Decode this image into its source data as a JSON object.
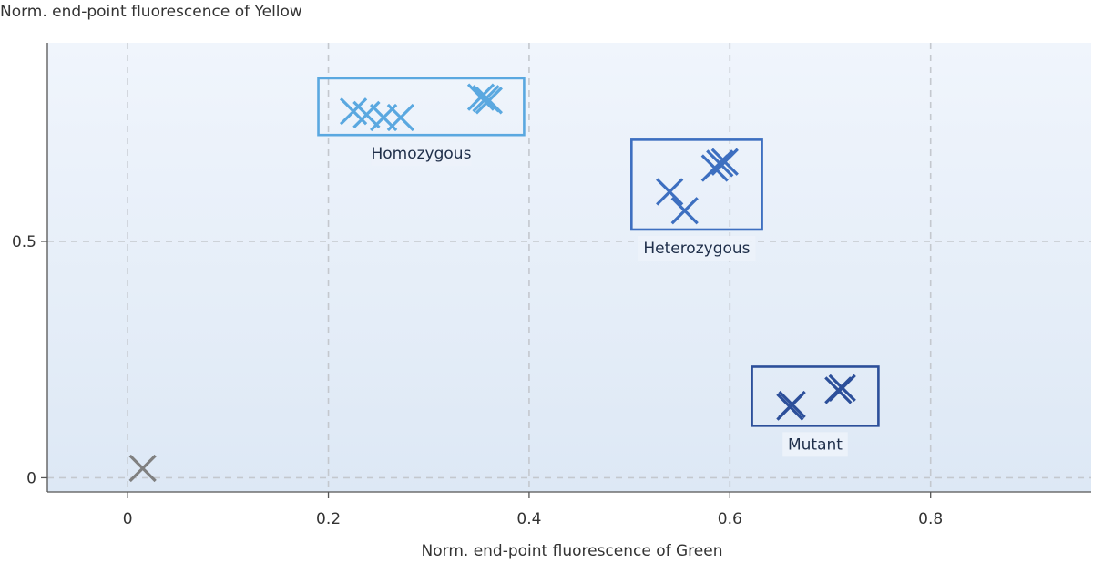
{
  "chart_data": {
    "type": "scatter",
    "xlabel": "Norm. end-point fluorescence of Green",
    "ylabel": "Norm. end-point fluorescence of Yellow",
    "xlim": [
      -0.08,
      0.96
    ],
    "ylim": [
      -0.03,
      0.92
    ],
    "x_ticks": [
      0,
      0.2,
      0.4,
      0.6,
      0.8
    ],
    "x_tick_labels": [
      "0",
      "0.2",
      "0.4",
      "0.6",
      "0.8"
    ],
    "y_ticks": [
      0,
      0.5
    ],
    "y_tick_labels": [
      "0",
      "0.5"
    ],
    "grid": true,
    "grid_style": "dashed",
    "background_gradient": [
      "#f0f5fc",
      "#dde8f5"
    ],
    "series": [
      {
        "label": "Homozygous",
        "color": "#5aa8e0",
        "box_color": "#5aa8e0",
        "box_x": [
          0.19,
          0.395
        ],
        "box_y": [
          0.725,
          0.845
        ],
        "points": [
          {
            "x": 0.225,
            "y": 0.775
          },
          {
            "x": 0.238,
            "y": 0.768
          },
          {
            "x": 0.255,
            "y": 0.762
          },
          {
            "x": 0.272,
            "y": 0.762
          },
          {
            "x": 0.352,
            "y": 0.805
          },
          {
            "x": 0.357,
            "y": 0.802
          },
          {
            "x": 0.36,
            "y": 0.798
          }
        ]
      },
      {
        "label": "Heterozygous",
        "color": "#3d6fc0",
        "box_color": "#3d6fc0",
        "box_x": [
          0.502,
          0.632
        ],
        "box_y": [
          0.525,
          0.715
        ],
        "points": [
          {
            "x": 0.54,
            "y": 0.605
          },
          {
            "x": 0.555,
            "y": 0.565
          },
          {
            "x": 0.585,
            "y": 0.655
          },
          {
            "x": 0.59,
            "y": 0.665
          },
          {
            "x": 0.595,
            "y": 0.668
          }
        ]
      },
      {
        "label": "Mutant",
        "color": "#2c4f9a",
        "box_color": "#2c4f9a",
        "box_x": [
          0.622,
          0.748
        ],
        "box_y": [
          0.11,
          0.235
        ],
        "points": [
          {
            "x": 0.66,
            "y": 0.15
          },
          {
            "x": 0.662,
            "y": 0.155
          },
          {
            "x": 0.708,
            "y": 0.185
          },
          {
            "x": 0.712,
            "y": 0.19
          }
        ]
      },
      {
        "label": "",
        "color": "#808080",
        "points": [
          {
            "x": 0.015,
            "y": 0.02
          }
        ]
      }
    ]
  }
}
